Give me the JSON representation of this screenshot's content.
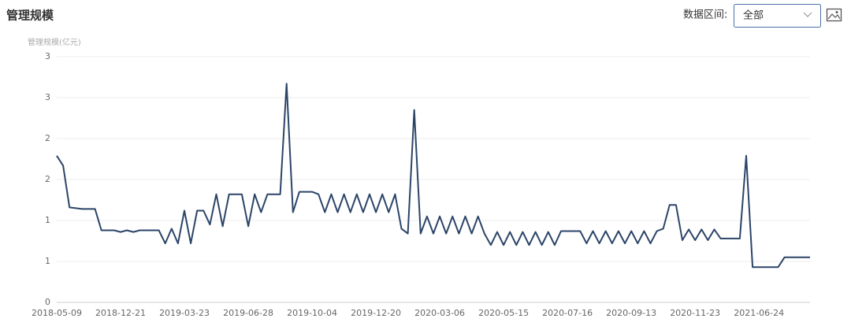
{
  "header": {
    "title": "管理规模",
    "range_label": "数据区间:",
    "range_value": "全部"
  },
  "chart_data": {
    "type": "line",
    "y_label": "管理规模(亿元)",
    "color": "#2b4468",
    "ylim": [
      0,
      3
    ],
    "yticks": [
      0,
      {
        "value": 0.5,
        "label": "1"
      },
      1,
      {
        "value": 1.5,
        "label": "2"
      },
      2,
      {
        "value": 2.5,
        "label": "3"
      },
      3
    ],
    "grid": true,
    "categories": [
      "2018-05-09",
      null,
      null,
      null,
      null,
      null,
      null,
      null,
      null,
      null,
      "2018-12-21",
      null,
      null,
      null,
      null,
      null,
      null,
      null,
      null,
      null,
      "2019-03-23",
      null,
      null,
      null,
      null,
      null,
      null,
      null,
      null,
      null,
      "2019-06-28",
      null,
      null,
      null,
      null,
      null,
      null,
      null,
      null,
      null,
      "2019-10-04",
      null,
      null,
      null,
      null,
      null,
      null,
      null,
      null,
      null,
      "2019-12-20",
      null,
      null,
      null,
      null,
      null,
      null,
      null,
      null,
      null,
      "2020-03-06",
      null,
      null,
      null,
      null,
      null,
      null,
      null,
      null,
      null,
      "2020-05-15",
      null,
      null,
      null,
      null,
      null,
      null,
      null,
      null,
      null,
      "2020-07-16",
      null,
      null,
      null,
      null,
      null,
      null,
      null,
      null,
      null,
      "2020-09-13",
      null,
      null,
      null,
      null,
      null,
      null,
      null,
      null,
      null,
      "2020-11-23",
      null,
      null,
      null,
      null,
      null,
      null,
      null,
      null,
      null,
      "2021-06-24",
      null,
      null,
      null,
      null,
      null,
      null,
      null,
      null
    ],
    "values": [
      1.79,
      1.67,
      1.16,
      1.15,
      1.14,
      1.14,
      1.14,
      0.88,
      0.88,
      0.88,
      0.86,
      0.88,
      0.86,
      0.88,
      0.88,
      0.88,
      0.88,
      0.72,
      0.9,
      0.72,
      1.12,
      0.72,
      1.12,
      1.12,
      0.95,
      1.32,
      0.93,
      1.32,
      1.32,
      1.32,
      0.93,
      1.32,
      1.1,
      1.32,
      1.32,
      1.32,
      2.67,
      1.1,
      1.35,
      1.35,
      1.35,
      1.32,
      1.1,
      1.32,
      1.1,
      1.32,
      1.1,
      1.32,
      1.1,
      1.32,
      1.1,
      1.32,
      1.1,
      1.32,
      0.9,
      0.84,
      2.35,
      0.84,
      1.05,
      0.84,
      1.05,
      0.84,
      1.05,
      0.84,
      1.05,
      0.84,
      1.05,
      0.84,
      0.7,
      0.86,
      0.7,
      0.86,
      0.7,
      0.86,
      0.7,
      0.86,
      0.7,
      0.86,
      0.7,
      0.87,
      0.87,
      0.87,
      0.87,
      0.72,
      0.87,
      0.72,
      0.87,
      0.72,
      0.87,
      0.72,
      0.87,
      0.72,
      0.87,
      0.72,
      0.87,
      0.9,
      1.19,
      1.19,
      0.76,
      0.89,
      0.76,
      0.89,
      0.76,
      0.89,
      0.78,
      0.78,
      0.78,
      0.78,
      1.79,
      0.43,
      0.43,
      0.43,
      0.43,
      0.43,
      0.55,
      0.55,
      0.55,
      0.55,
      0.55
    ]
  }
}
